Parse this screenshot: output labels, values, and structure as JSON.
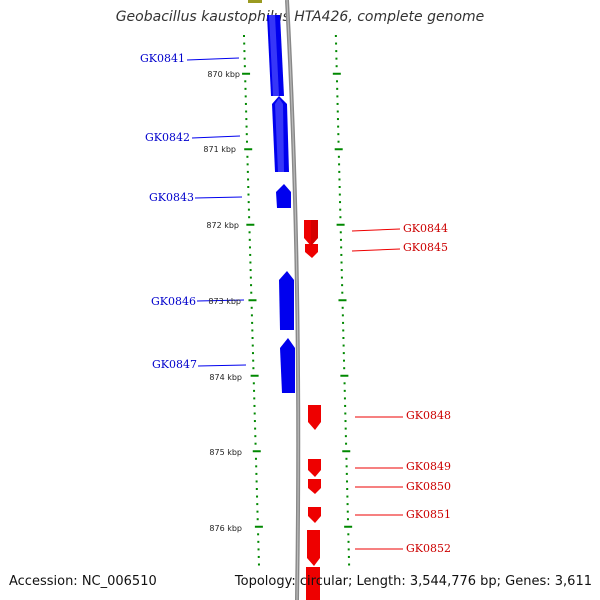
{
  "title": "Geobacillus kaustophilus HTA426, complete genome",
  "footer": {
    "accession": "Accession: NC_006510",
    "summary": "Topology: circular; Length: 3,544,776 bp; Genes: 3,611"
  },
  "scale_labels": [
    "870 kbp",
    "871 kbp",
    "872 kbp",
    "873 kbp",
    "874 kbp",
    "875 kbp",
    "876 kbp"
  ],
  "genes_forward": [
    {
      "label": "GK0841",
      "color": "#0000ee"
    },
    {
      "label": "GK0842",
      "color": "#0000ee"
    },
    {
      "label": "GK0843",
      "color": "#0000ee"
    },
    {
      "label": "GK0846",
      "color": "#0000ee"
    },
    {
      "label": "GK0847",
      "color": "#0000ee"
    }
  ],
  "genes_reverse": [
    {
      "label": "GK0844",
      "color": "#ee0000"
    },
    {
      "label": "GK0845",
      "color": "#ee0000"
    },
    {
      "label": "GK0848",
      "color": "#ee0000"
    },
    {
      "label": "GK0849",
      "color": "#ee0000"
    },
    {
      "label": "GK0850",
      "color": "#ee0000"
    },
    {
      "label": "GK0851",
      "color": "#ee0000"
    },
    {
      "label": "GK0852",
      "color": "#ee0000"
    }
  ],
  "colors": {
    "backbone": "#888888",
    "ticks": "#008800",
    "forward": "#0000ee",
    "reverse": "#ee0000"
  }
}
